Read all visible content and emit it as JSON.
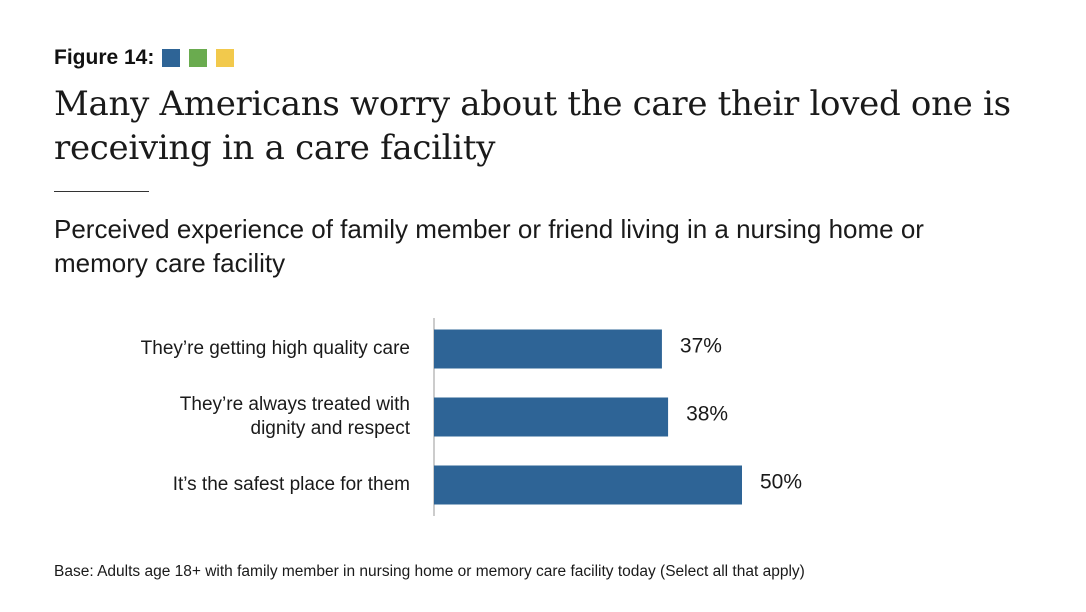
{
  "header": {
    "figure_label": "Figure 14:",
    "swatch_colors": [
      "#2e6496",
      "#6aab4f",
      "#f2c94c"
    ]
  },
  "title": "Many Americans worry about the care their loved one is receiving in a care facility",
  "subtitle": "Perceived experience of family member or friend living in a nursing home or memory care facility",
  "footnote": "Base: Adults age 18+ with family member in nursing home or memory care facility today (Select all that apply)",
  "chart_data": {
    "type": "bar",
    "orientation": "horizontal",
    "categories": [
      [
        "They’re getting high quality care"
      ],
      [
        "They’re always treated with",
        "dignity and respect"
      ],
      [
        "It’s the safest place for them"
      ]
    ],
    "values": [
      37,
      38,
      50
    ],
    "value_labels": [
      "37%",
      "38%",
      "50%"
    ],
    "bar_color": "#2e6496",
    "grid": false,
    "legend": "none"
  }
}
